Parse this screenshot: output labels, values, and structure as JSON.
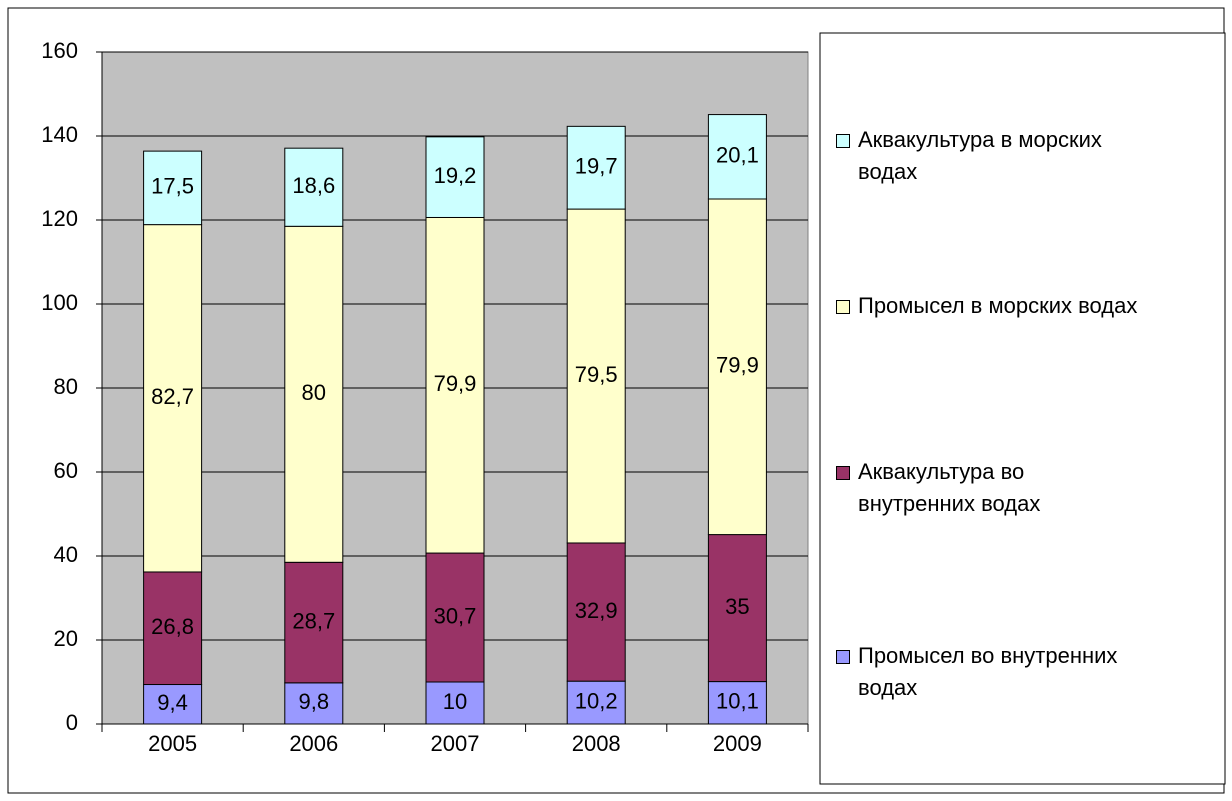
{
  "chart_data": {
    "type": "stacked-bar",
    "categories": [
      "2005",
      "2006",
      "2007",
      "2008",
      "2009"
    ],
    "series": [
      {
        "name": "Промысел во внутренних водах",
        "color": "#9999ff",
        "values": [
          9.4,
          9.8,
          10,
          10.2,
          10.1
        ],
        "value_labels": [
          "9,4",
          "9,8",
          "10",
          "10,2",
          "10,1"
        ]
      },
      {
        "name": "Аквакультура во внутренних водах",
        "color": "#993366",
        "values": [
          26.8,
          28.7,
          30.7,
          32.9,
          35
        ],
        "value_labels": [
          "26,8",
          "28,7",
          "30,7",
          "32,9",
          "35"
        ]
      },
      {
        "name": "Промысел в морских водах",
        "color": "#ffffcc",
        "values": [
          82.7,
          80,
          79.9,
          79.5,
          79.9
        ],
        "value_labels": [
          "82,7",
          "80",
          "79,9",
          "79,5",
          "79,9"
        ]
      },
      {
        "name": "Аквакультура в морских водах",
        "color": "#ccffff",
        "values": [
          17.5,
          18.6,
          19.2,
          19.7,
          20.1
        ],
        "value_labels": [
          "17,5",
          "18,6",
          "19,2",
          "19,7",
          "20,1"
        ]
      }
    ],
    "ylim": [
      0,
      160
    ],
    "yticks": [
      0,
      20,
      40,
      60,
      80,
      100,
      120,
      140,
      160
    ],
    "grid": true,
    "legend": "right"
  }
}
